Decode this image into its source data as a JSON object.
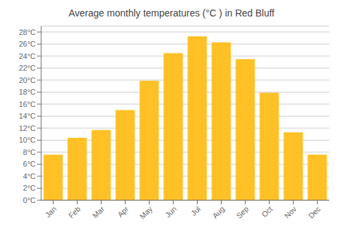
{
  "chart_data": {
    "type": "bar",
    "title": "Average monthly temperatures (°C ) in Red Bluff",
    "categories": [
      "Jan",
      "Feb",
      "Mar",
      "Apr",
      "May",
      "Jun",
      "Jul",
      "Aug",
      "Sep",
      "Oct",
      "Nov",
      "Dec"
    ],
    "values": [
      7.6,
      10.4,
      11.7,
      15.0,
      19.9,
      24.5,
      27.3,
      26.3,
      23.5,
      17.9,
      11.3,
      7.6
    ],
    "color": "#FFC125",
    "ylim": [
      0,
      29
    ],
    "yticks": [
      {
        "value": 0,
        "label": "0°C"
      },
      {
        "value": 2,
        "label": "2°C"
      },
      {
        "value": 4,
        "label": "4°C"
      },
      {
        "value": 6,
        "label": "6°C"
      },
      {
        "value": 8,
        "label": "8°C"
      },
      {
        "value": 10,
        "label": "10°C"
      },
      {
        "value": 12,
        "label": "12°C"
      },
      {
        "value": 14,
        "label": "14°C"
      },
      {
        "value": 16,
        "label": "16°C"
      },
      {
        "value": 18,
        "label": "18°C"
      },
      {
        "value": 20,
        "label": "20°C"
      },
      {
        "value": 22,
        "label": "22°C"
      },
      {
        "value": 24,
        "label": "24°C"
      },
      {
        "value": 26,
        "label": "26°C"
      },
      {
        "value": 28,
        "label": "28°C"
      }
    ],
    "grid": true
  }
}
